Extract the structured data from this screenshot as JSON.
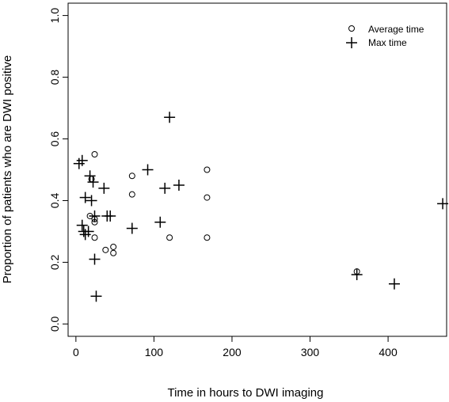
{
  "chart_data": {
    "type": "scatter",
    "title": "",
    "xlabel": "Time in hours to DWI imaging",
    "ylabel": "Proportion of patients who are DWI positive",
    "xlim": [
      -10,
      475
    ],
    "ylim": [
      -0.04,
      1.04
    ],
    "x_ticks": [
      0,
      100,
      200,
      300,
      400
    ],
    "y_ticks": [
      0.0,
      0.2,
      0.4,
      0.6,
      0.8,
      1.0
    ],
    "x_tick_labels": [
      "0",
      "100",
      "200",
      "300",
      "400"
    ],
    "y_tick_labels": [
      "0.0",
      "0.2",
      "0.4",
      "0.6",
      "0.8",
      "1.0"
    ],
    "grid": false,
    "legend_position": "top-right",
    "series": [
      {
        "name": "Average time",
        "marker": "circle",
        "points": [
          {
            "x": 18,
            "y": 0.35
          },
          {
            "x": 20,
            "y": 0.47
          },
          {
            "x": 24,
            "y": 0.55
          },
          {
            "x": 24,
            "y": 0.34
          },
          {
            "x": 24,
            "y": 0.33
          },
          {
            "x": 24,
            "y": 0.28
          },
          {
            "x": 38,
            "y": 0.24
          },
          {
            "x": 48,
            "y": 0.25
          },
          {
            "x": 48,
            "y": 0.23
          },
          {
            "x": 72,
            "y": 0.48
          },
          {
            "x": 72,
            "y": 0.42
          },
          {
            "x": 120,
            "y": 0.28
          },
          {
            "x": 168,
            "y": 0.5
          },
          {
            "x": 168,
            "y": 0.41
          },
          {
            "x": 168,
            "y": 0.28
          },
          {
            "x": 360,
            "y": 0.17
          }
        ]
      },
      {
        "name": "Max time",
        "marker": "plus",
        "points": [
          {
            "x": 4,
            "y": 0.52
          },
          {
            "x": 8,
            "y": 0.53
          },
          {
            "x": 8,
            "y": 0.32
          },
          {
            "x": 10,
            "y": 0.3
          },
          {
            "x": 12,
            "y": 0.29
          },
          {
            "x": 12,
            "y": 0.41
          },
          {
            "x": 16,
            "y": 0.3
          },
          {
            "x": 18,
            "y": 0.48
          },
          {
            "x": 20,
            "y": 0.4
          },
          {
            "x": 22,
            "y": 0.46
          },
          {
            "x": 24,
            "y": 0.21
          },
          {
            "x": 24,
            "y": 0.35
          },
          {
            "x": 26,
            "y": 0.09
          },
          {
            "x": 36,
            "y": 0.44
          },
          {
            "x": 40,
            "y": 0.35
          },
          {
            "x": 44,
            "y": 0.35
          },
          {
            "x": 72,
            "y": 0.31
          },
          {
            "x": 92,
            "y": 0.5
          },
          {
            "x": 108,
            "y": 0.33
          },
          {
            "x": 114,
            "y": 0.44
          },
          {
            "x": 120,
            "y": 0.67
          },
          {
            "x": 132,
            "y": 0.45
          },
          {
            "x": 360,
            "y": 0.16
          },
          {
            "x": 408,
            "y": 0.13
          },
          {
            "x": 470,
            "y": 0.39
          }
        ]
      }
    ]
  }
}
